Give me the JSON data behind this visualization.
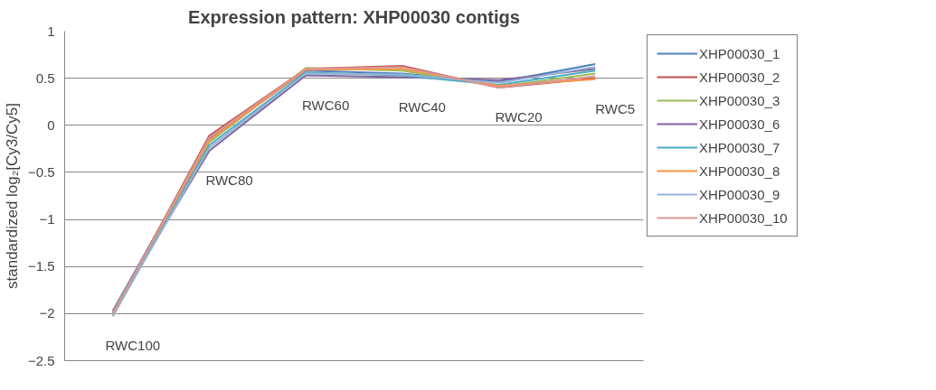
{
  "chart_data": {
    "type": "line",
    "title": "Expression pattern: XHP00030 contigs",
    "ylabel": "standardized log₂[Cy3/Cy5]",
    "categories": [
      "RWC100",
      "RWC80",
      "RWC60",
      "RWC40",
      "RWC20",
      "RWC5"
    ],
    "ylim": [
      -2.5,
      1
    ],
    "yticks": [
      -2.5,
      -2,
      -1.5,
      -1,
      -0.5,
      0,
      0.5,
      1
    ],
    "grid": "y",
    "legend": "right",
    "tick_labels": "y",
    "marker": "none",
    "line_style": "solid",
    "series": [
      {
        "name": "XHP00030_1",
        "color": "#4f81bd",
        "values": [
          -1.97,
          -0.15,
          0.58,
          0.55,
          0.46,
          0.65
        ]
      },
      {
        "name": "XHP00030_2",
        "color": "#c0504d",
        "values": [
          -2.0,
          -0.11,
          0.6,
          0.63,
          0.4,
          0.5
        ]
      },
      {
        "name": "XHP00030_3",
        "color": "#9bbb59",
        "values": [
          -2.03,
          -0.18,
          0.61,
          0.58,
          0.41,
          0.55
        ]
      },
      {
        "name": "XHP00030_6",
        "color": "#8064a2",
        "values": [
          -1.98,
          -0.27,
          0.53,
          0.51,
          0.48,
          0.6
        ]
      },
      {
        "name": "XHP00030_7",
        "color": "#4bacc6",
        "values": [
          -2.01,
          -0.21,
          0.56,
          0.53,
          0.43,
          0.58
        ]
      },
      {
        "name": "XHP00030_8",
        "color": "#f79646",
        "values": [
          -1.99,
          -0.16,
          0.59,
          0.6,
          0.42,
          0.49
        ]
      },
      {
        "name": "XHP00030_9",
        "color": "#95b3d7",
        "values": [
          -2.02,
          -0.24,
          0.55,
          0.54,
          0.45,
          0.62
        ]
      },
      {
        "name": "XHP00030_10",
        "color": "#d99694",
        "values": [
          -2.0,
          -0.13,
          0.6,
          0.62,
          0.4,
          0.52
        ]
      }
    ]
  }
}
